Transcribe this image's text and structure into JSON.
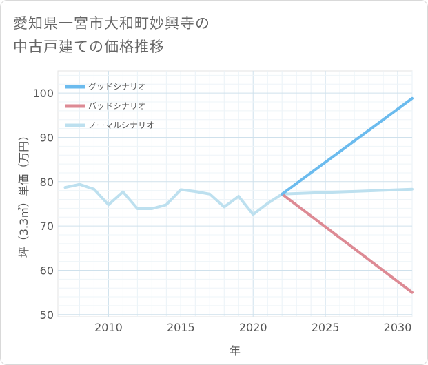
{
  "title": {
    "line1": "愛知県一宮市大和町妙興寺の",
    "line2": "中古戸建ての価格推移"
  },
  "chart_data": {
    "type": "line",
    "title": "愛知県一宮市大和町妙興寺の中古戸建ての価格推移",
    "xlabel": "年",
    "ylabel": "坪（3.3㎡）単価（万円）",
    "xlim": [
      2006.5,
      2031
    ],
    "ylim": [
      49.5,
      105
    ],
    "x_ticks": [
      2010,
      2015,
      2020,
      2025,
      2030
    ],
    "y_ticks": [
      50,
      60,
      70,
      80,
      90,
      100
    ],
    "grid": true,
    "legend_position": "top-left",
    "series": [
      {
        "name": "グッドシナリオ",
        "color": "#6bbbee",
        "x": [
          2022,
          2031
        ],
        "y": [
          77.2,
          98.8
        ]
      },
      {
        "name": "バッドシナリオ",
        "color": "#dd8a94",
        "x": [
          2022,
          2031
        ],
        "y": [
          77.2,
          55.0
        ]
      },
      {
        "name": "ノーマルシナリオ",
        "color": "#bde0ef",
        "x": [
          2007,
          2008,
          2009,
          2010,
          2011,
          2012,
          2013,
          2014,
          2015,
          2016,
          2017,
          2018,
          2019,
          2020,
          2021,
          2022,
          2031
        ],
        "y": [
          78.7,
          79.4,
          78.3,
          74.8,
          77.7,
          73.9,
          73.9,
          74.8,
          78.2,
          77.8,
          77.2,
          74.3,
          76.7,
          72.6,
          75.1,
          77.2,
          78.3
        ]
      }
    ]
  }
}
